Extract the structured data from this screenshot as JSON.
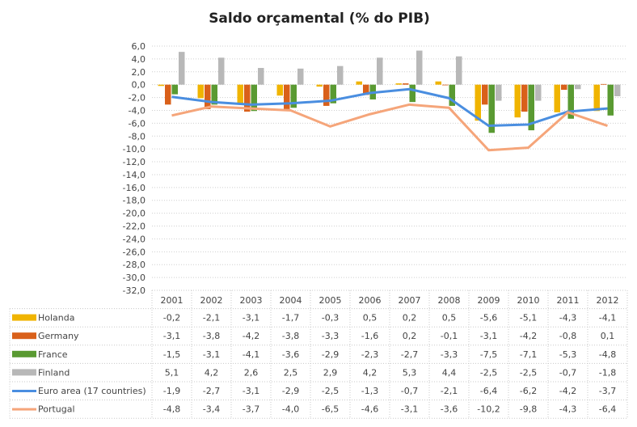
{
  "chart_data": {
    "type": "bar",
    "title": "Saldo orçamental (% do PIB)",
    "categories": [
      "2001",
      "2002",
      "2003",
      "2004",
      "2005",
      "2006",
      "2007",
      "2008",
      "2009",
      "2010",
      "2011",
      "2012"
    ],
    "ylim": [
      -32,
      6
    ],
    "yticks": [
      "6,0",
      "4,0",
      "2,0",
      "0,0",
      "-2,0",
      "-4,0",
      "-6,0",
      "-8,0",
      "-10,0",
      "-12,0",
      "-14,0",
      "-16,0",
      "-18,0",
      "-20,0",
      "-22,0",
      "-24,0",
      "-26,0",
      "-28,0",
      "-30,0",
      "-32,0"
    ],
    "grid": true,
    "legend": "data-table",
    "series": [
      {
        "name": "Holanda",
        "kind": "bar",
        "color": "#f0b400",
        "values": [
          -0.2,
          -2.1,
          -3.1,
          -1.7,
          -0.3,
          0.5,
          0.2,
          0.5,
          -5.6,
          -5.1,
          -4.3,
          -4.1
        ],
        "labels": [
          "-0,2",
          "-2,1",
          "-3,1",
          "-1,7",
          "-0,3",
          "0,5",
          "0,2",
          "0,5",
          "-5,6",
          "-5,1",
          "-4,3",
          "-4,1"
        ]
      },
      {
        "name": "Germany",
        "kind": "bar",
        "color": "#d9601a",
        "values": [
          -3.1,
          -3.8,
          -4.2,
          -3.8,
          -3.3,
          -1.6,
          0.2,
          -0.1,
          -3.1,
          -4.2,
          -0.8,
          0.1
        ],
        "labels": [
          "-3,1",
          "-3,8",
          "-4,2",
          "-3,8",
          "-3,3",
          "-1,6",
          "0,2",
          "-0,1",
          "-3,1",
          "-4,2",
          "-0,8",
          "0,1"
        ]
      },
      {
        "name": "France",
        "kind": "bar",
        "color": "#5a9a32",
        "values": [
          -1.5,
          -3.1,
          -4.1,
          -3.6,
          -2.9,
          -2.3,
          -2.7,
          -3.3,
          -7.5,
          -7.1,
          -5.3,
          -4.8
        ],
        "labels": [
          "-1,5",
          "-3,1",
          "-4,1",
          "-3,6",
          "-2,9",
          "-2,3",
          "-2,7",
          "-3,3",
          "-7,5",
          "-7,1",
          "-5,3",
          "-4,8"
        ]
      },
      {
        "name": "Finland",
        "kind": "bar",
        "color": "#b8b8b8",
        "values": [
          5.1,
          4.2,
          2.6,
          2.5,
          2.9,
          4.2,
          5.3,
          4.4,
          -2.5,
          -2.5,
          -0.7,
          -1.8
        ],
        "labels": [
          "5,1",
          "4,2",
          "2,6",
          "2,5",
          "2,9",
          "4,2",
          "5,3",
          "4,4",
          "-2,5",
          "-2,5",
          "-0,7",
          "-1,8"
        ]
      },
      {
        "name": "Euro area (17 countries)",
        "kind": "line",
        "color": "#4a8ee0",
        "values": [
          -1.9,
          -2.7,
          -3.1,
          -2.9,
          -2.5,
          -1.3,
          -0.7,
          -2.1,
          -6.4,
          -6.2,
          -4.2,
          -3.7
        ],
        "labels": [
          "-1,9",
          "-2,7",
          "-3,1",
          "-2,9",
          "-2,5",
          "-1,3",
          "-0,7",
          "-2,1",
          "-6,4",
          "-6,2",
          "-4,2",
          "-3,7"
        ]
      },
      {
        "name": "Portugal",
        "kind": "line",
        "color": "#f5a57a",
        "values": [
          -4.8,
          -3.4,
          -3.7,
          -4.0,
          -6.5,
          -4.6,
          -3.1,
          -3.6,
          -10.2,
          -9.8,
          -4.3,
          -6.4
        ],
        "labels": [
          "-4,8",
          "-3,4",
          "-3,7",
          "-4,0",
          "-6,5",
          "-4,6",
          "-3,1",
          "-3,6",
          "-10,2",
          "-9,8",
          "-4,3",
          "-6,4"
        ]
      }
    ]
  }
}
